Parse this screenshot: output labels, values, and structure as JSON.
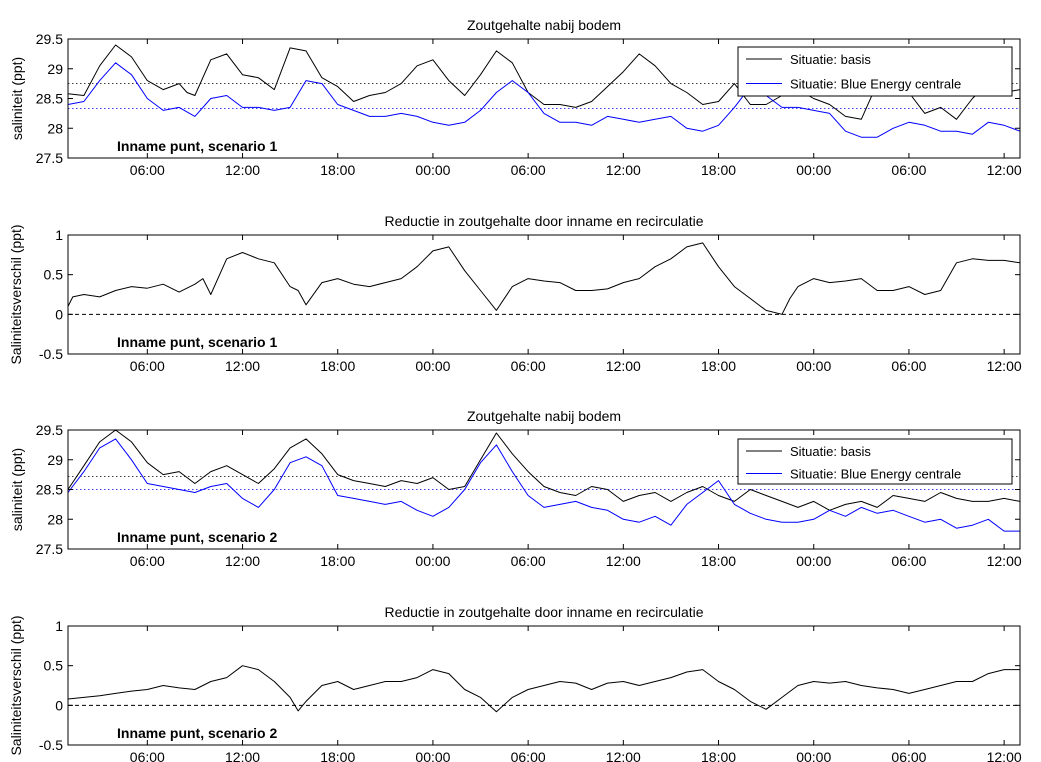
{
  "colors": {
    "basis": "#000000",
    "blue_energy": "#0000ff",
    "axis": "#000000",
    "background": "#ffffff"
  },
  "chart_data": [
    {
      "type": "line",
      "title": "Zoutgehalte nabij bodem",
      "ylabel": "saliniteit (ppt)",
      "annotation": "Inname punt, scenario 1",
      "ylim": [
        27.5,
        29.5
      ],
      "yticks": [
        "27.5",
        "28",
        "28.5",
        "29",
        "29.5"
      ],
      "xlim": [
        0,
        60
      ],
      "xticks": [
        5,
        11,
        17,
        23,
        29,
        35,
        41,
        47,
        53,
        59
      ],
      "xtick_labels": [
        "06:00",
        "12:00",
        "18:00",
        "00:00",
        "06:00",
        "12:00",
        "18:00",
        "00:00",
        "06:00",
        "12:00"
      ],
      "legend": [
        "Situatie: basis",
        "Situatie: Blue Energy centrale"
      ],
      "legend_position": "top-right",
      "dotted_lines": [
        {
          "series": 0,
          "y": 28.75
        },
        {
          "series": 1,
          "y": 28.33
        }
      ],
      "series": [
        {
          "name": "Situatie: basis",
          "x": [
            0,
            1,
            2,
            3,
            4,
            5,
            6,
            7,
            7.5,
            8,
            9,
            10,
            11,
            12,
            13,
            14,
            15,
            16,
            17,
            18,
            19,
            20,
            21,
            22,
            23,
            24,
            25,
            26,
            27,
            28,
            29,
            30,
            31,
            32,
            33,
            34,
            35,
            36,
            37,
            38,
            39,
            40,
            41,
            42,
            43,
            44,
            45,
            46,
            47,
            48,
            49,
            50,
            51,
            52,
            53,
            54,
            55,
            56,
            57,
            58,
            59,
            60
          ],
          "values": [
            28.58,
            28.55,
            29.05,
            29.4,
            29.2,
            28.8,
            28.65,
            28.75,
            28.6,
            28.55,
            29.15,
            29.25,
            28.9,
            28.85,
            28.65,
            29.35,
            29.3,
            28.85,
            28.7,
            28.45,
            28.55,
            28.6,
            28.75,
            29.05,
            29.15,
            28.8,
            28.55,
            28.9,
            29.3,
            29.1,
            28.6,
            28.4,
            28.4,
            28.35,
            28.45,
            28.7,
            28.95,
            29.25,
            29.05,
            28.75,
            28.6,
            28.4,
            28.45,
            28.75,
            28.4,
            28.4,
            28.55,
            28.65,
            28.5,
            28.4,
            28.2,
            28.15,
            28.75,
            29.0,
            28.6,
            28.25,
            28.35,
            28.15,
            28.5,
            28.75,
            28.6,
            28.65
          ]
        },
        {
          "name": "Situatie: Blue Energy centrale",
          "x": [
            0,
            1,
            2,
            3,
            4,
            5,
            6,
            7,
            8,
            9,
            10,
            11,
            12,
            13,
            14,
            15,
            16,
            17,
            18,
            19,
            20,
            21,
            22,
            23,
            24,
            25,
            26,
            27,
            28,
            29,
            30,
            31,
            32,
            33,
            34,
            35,
            36,
            37,
            38,
            39,
            40,
            41,
            42,
            43,
            44,
            45,
            46,
            47,
            48,
            49,
            50,
            51,
            52,
            53,
            54,
            55,
            56,
            57,
            58,
            59,
            60
          ],
          "values": [
            28.4,
            28.45,
            28.8,
            29.1,
            28.9,
            28.5,
            28.3,
            28.35,
            28.2,
            28.5,
            28.55,
            28.35,
            28.35,
            28.3,
            28.35,
            28.8,
            28.75,
            28.4,
            28.3,
            28.2,
            28.2,
            28.25,
            28.2,
            28.1,
            28.05,
            28.1,
            28.3,
            28.6,
            28.8,
            28.6,
            28.25,
            28.1,
            28.1,
            28.05,
            28.2,
            28.15,
            28.1,
            28.15,
            28.2,
            28.0,
            27.95,
            28.05,
            28.35,
            28.7,
            28.55,
            28.35,
            28.35,
            28.3,
            28.25,
            27.95,
            27.85,
            27.85,
            28.0,
            28.1,
            28.05,
            27.95,
            27.95,
            27.9,
            28.1,
            28.05,
            27.95
          ]
        }
      ]
    },
    {
      "type": "line",
      "title": "Reductie in zoutgehalte door inname en recirculatie",
      "ylabel": "Saliniteitsverschil (ppt)",
      "annotation": "Inname punt, scenario 1",
      "ylim": [
        -0.5,
        1
      ],
      "yticks": [
        "-0.5",
        "0",
        "0.5",
        "1"
      ],
      "xlim": [
        0,
        60
      ],
      "xticks": [
        5,
        11,
        17,
        23,
        29,
        35,
        41,
        47,
        53,
        59
      ],
      "xtick_labels": [
        "06:00",
        "12:00",
        "18:00",
        "00:00",
        "06:00",
        "12:00",
        "18:00",
        "00:00",
        "06:00",
        "12:00"
      ],
      "zero_line": 0,
      "series": [
        {
          "x": [
            0,
            0.3,
            1,
            2,
            3,
            4,
            5,
            6,
            7,
            8,
            8.5,
            9,
            10,
            11,
            12,
            13,
            14,
            14.5,
            15,
            16,
            17,
            18,
            19,
            20,
            21,
            22,
            23,
            24,
            25,
            26,
            27,
            28,
            29,
            30,
            31,
            32,
            33,
            34,
            35,
            36,
            37,
            38,
            39,
            40,
            41,
            42,
            43,
            44,
            45,
            45.5,
            46,
            47,
            48,
            49,
            50,
            51,
            52,
            53,
            54,
            55,
            56,
            57,
            58,
            59,
            60
          ],
          "values": [
            0.1,
            0.22,
            0.25,
            0.22,
            0.3,
            0.35,
            0.33,
            0.38,
            0.28,
            0.38,
            0.45,
            0.25,
            0.7,
            0.78,
            0.7,
            0.65,
            0.35,
            0.3,
            0.12,
            0.4,
            0.45,
            0.38,
            0.35,
            0.4,
            0.45,
            0.6,
            0.8,
            0.85,
            0.55,
            0.3,
            0.05,
            0.35,
            0.45,
            0.42,
            0.4,
            0.3,
            0.3,
            0.32,
            0.4,
            0.45,
            0.6,
            0.7,
            0.85,
            0.9,
            0.6,
            0.35,
            0.2,
            0.05,
            0.0,
            0.2,
            0.35,
            0.45,
            0.4,
            0.42,
            0.45,
            0.3,
            0.3,
            0.35,
            0.25,
            0.3,
            0.65,
            0.7,
            0.68,
            0.68,
            0.65
          ]
        }
      ]
    },
    {
      "type": "line",
      "title": "Zoutgehalte nabij bodem",
      "ylabel": "saliniteit (ppt)",
      "annotation": "Inname punt, scenario 2",
      "ylim": [
        27.5,
        29.5
      ],
      "yticks": [
        "27.5",
        "28",
        "28.5",
        "29",
        "29.5"
      ],
      "xlim": [
        0,
        60
      ],
      "xticks": [
        5,
        11,
        17,
        23,
        29,
        35,
        41,
        47,
        53,
        59
      ],
      "xtick_labels": [
        "06:00",
        "12:00",
        "18:00",
        "00:00",
        "06:00",
        "12:00",
        "18:00",
        "00:00",
        "06:00",
        "12:00"
      ],
      "legend": [
        "Situatie: basis",
        "Situatie: Blue Energy centrale"
      ],
      "legend_position": "top-right",
      "dotted_lines": [
        {
          "series": 0,
          "y": 28.72
        },
        {
          "series": 1,
          "y": 28.5
        }
      ],
      "series": [
        {
          "name": "Situatie: basis",
          "x": [
            0,
            1,
            2,
            3,
            4,
            5,
            6,
            7,
            8,
            9,
            10,
            11,
            12,
            13,
            14,
            15,
            16,
            17,
            18,
            19,
            20,
            21,
            22,
            23,
            24,
            25,
            26,
            27,
            28,
            29,
            30,
            31,
            32,
            33,
            34,
            35,
            36,
            37,
            38,
            39,
            40,
            41,
            42,
            43,
            44,
            45,
            46,
            47,
            48,
            49,
            50,
            51,
            52,
            53,
            54,
            55,
            56,
            57,
            58,
            59,
            60
          ],
          "values": [
            28.5,
            28.9,
            29.3,
            29.5,
            29.3,
            28.95,
            28.75,
            28.8,
            28.6,
            28.8,
            28.9,
            28.75,
            28.6,
            28.85,
            29.2,
            29.35,
            29.1,
            28.75,
            28.65,
            28.6,
            28.55,
            28.65,
            28.6,
            28.7,
            28.5,
            28.55,
            29.0,
            29.45,
            29.1,
            28.8,
            28.55,
            28.45,
            28.4,
            28.55,
            28.5,
            28.3,
            28.4,
            28.45,
            28.3,
            28.45,
            28.55,
            28.4,
            28.3,
            28.5,
            28.4,
            28.3,
            28.2,
            28.3,
            28.15,
            28.25,
            28.3,
            28.2,
            28.4,
            28.35,
            28.3,
            28.45,
            28.35,
            28.3,
            28.3,
            28.35,
            28.3
          ]
        },
        {
          "name": "Situatie: Blue Energy centrale",
          "x": [
            0,
            1,
            2,
            3,
            4,
            5,
            6,
            7,
            8,
            9,
            10,
            11,
            12,
            13,
            14,
            15,
            16,
            17,
            18,
            19,
            20,
            21,
            22,
            23,
            24,
            25,
            26,
            27,
            28,
            29,
            30,
            31,
            32,
            33,
            34,
            35,
            36,
            37,
            38,
            39,
            40,
            41,
            42,
            43,
            44,
            45,
            46,
            47,
            48,
            49,
            50,
            51,
            52,
            53,
            54,
            55,
            56,
            57,
            58,
            59,
            60
          ],
          "values": [
            28.45,
            28.8,
            29.2,
            29.35,
            29.0,
            28.6,
            28.55,
            28.5,
            28.45,
            28.55,
            28.6,
            28.35,
            28.2,
            28.5,
            28.95,
            29.05,
            28.9,
            28.4,
            28.35,
            28.3,
            28.25,
            28.3,
            28.15,
            28.05,
            28.2,
            28.5,
            28.95,
            29.25,
            28.8,
            28.4,
            28.2,
            28.25,
            28.3,
            28.2,
            28.15,
            28.0,
            27.95,
            28.05,
            27.9,
            28.25,
            28.45,
            28.65,
            28.25,
            28.1,
            28.0,
            27.95,
            27.95,
            28.0,
            28.15,
            28.05,
            28.2,
            28.1,
            28.15,
            28.05,
            27.95,
            28.0,
            27.85,
            27.9,
            28.0,
            27.8,
            27.8
          ]
        }
      ]
    },
    {
      "type": "line",
      "title": "Reductie in zoutgehalte door inname en recirculatie",
      "ylabel": "Saliniteitsverschil (ppt)",
      "annotation": "Inname punt, scenario 2",
      "ylim": [
        -0.5,
        1
      ],
      "yticks": [
        "-0.5",
        "0",
        "0.5",
        "1"
      ],
      "xlim": [
        0,
        60
      ],
      "xticks": [
        5,
        11,
        17,
        23,
        29,
        35,
        41,
        47,
        53,
        59
      ],
      "xtick_labels": [
        "06:00",
        "12:00",
        "18:00",
        "00:00",
        "06:00",
        "12:00",
        "18:00",
        "00:00",
        "06:00",
        "12:00"
      ],
      "zero_line": 0,
      "series": [
        {
          "x": [
            0,
            1,
            2,
            3,
            4,
            5,
            6,
            7,
            8,
            9,
            10,
            11,
            12,
            13,
            14,
            14.5,
            15,
            16,
            17,
            18,
            19,
            20,
            21,
            22,
            23,
            24,
            25,
            26,
            27,
            28,
            29,
            30,
            31,
            32,
            33,
            34,
            35,
            36,
            37,
            38,
            39,
            40,
            41,
            42,
            43,
            44,
            45,
            46,
            47,
            48,
            49,
            50,
            51,
            52,
            53,
            54,
            55,
            56,
            57,
            58,
            59,
            60
          ],
          "values": [
            0.08,
            0.1,
            0.12,
            0.15,
            0.18,
            0.2,
            0.25,
            0.22,
            0.2,
            0.3,
            0.35,
            0.5,
            0.45,
            0.3,
            0.1,
            -0.07,
            0.05,
            0.25,
            0.3,
            0.2,
            0.25,
            0.3,
            0.3,
            0.35,
            0.45,
            0.4,
            0.2,
            0.1,
            -0.08,
            0.1,
            0.2,
            0.25,
            0.3,
            0.28,
            0.2,
            0.28,
            0.3,
            0.25,
            0.3,
            0.35,
            0.42,
            0.45,
            0.3,
            0.2,
            0.05,
            -0.05,
            0.1,
            0.25,
            0.3,
            0.28,
            0.3,
            0.25,
            0.22,
            0.2,
            0.15,
            0.2,
            0.25,
            0.3,
            0.3,
            0.4,
            0.45,
            0.45
          ]
        }
      ]
    }
  ]
}
